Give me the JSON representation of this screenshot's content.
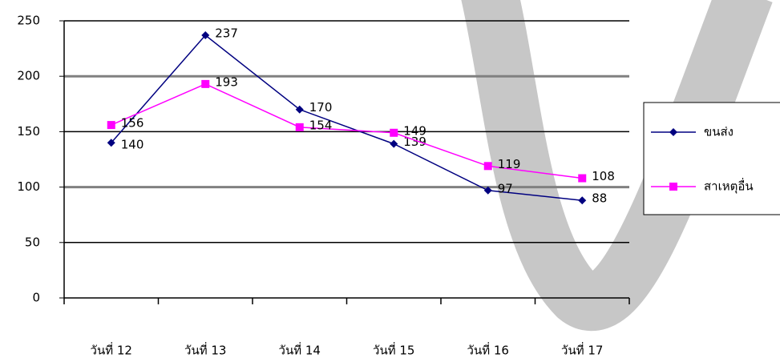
{
  "chart_data": {
    "type": "line",
    "categories": [
      "วันที่ 12",
      "วันที่ 13",
      "วันที่ 14",
      "วันที่ 15",
      "วันที่ 16",
      "วันที่ 17"
    ],
    "series": [
      {
        "name": "ขนส่ง",
        "color": "#000080",
        "marker": "diamond",
        "values": [
          140,
          237,
          170,
          139,
          97,
          88
        ]
      },
      {
        "name": "สาเหตุอื่น",
        "color": "#ff00ff",
        "marker": "square",
        "values": [
          156,
          193,
          154,
          149,
          119,
          108
        ]
      }
    ],
    "ylim": [
      0,
      250
    ],
    "yticks": [
      0,
      50,
      100,
      150,
      200,
      250
    ],
    "grid": true,
    "legend": "right"
  }
}
